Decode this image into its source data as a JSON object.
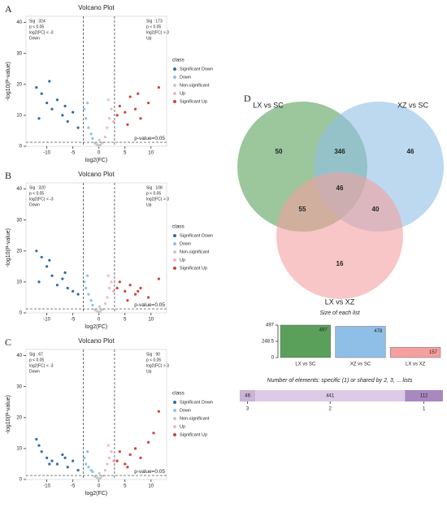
{
  "chart_data": [
    {
      "type": "scatter",
      "panel": "A",
      "title": "Volcano Plot",
      "x_label": "log2(FC)",
      "y_label": "-log10(P-value)",
      "xlim": [
        -14,
        13
      ],
      "xticks": [
        -10,
        -5,
        0,
        5,
        10
      ],
      "ylim": [
        0,
        42
      ],
      "yticks": [
        0,
        10,
        20,
        30,
        40
      ],
      "vlines": [
        -3,
        3
      ],
      "hline": 1.3,
      "hline_label": "p-value=0.05",
      "annotation_left": [
        "Sig : 324",
        "p < 0.05",
        "log2(FC) < -3",
        "Down"
      ],
      "annotation_right": [
        "Sig : 173",
        "p < 0.05",
        "log2(FC) > 3",
        "Up"
      ],
      "legend_title": "class",
      "series": [
        {
          "name": "Significant Down",
          "color": "#2e6da4",
          "x": [
            -12,
            -11,
            -10,
            -9,
            -8,
            -7,
            -6,
            -5,
            -4,
            -11.5,
            -9.5,
            -6.5
          ],
          "values": [
            19,
            17,
            14,
            12,
            15,
            10,
            8,
            11,
            6,
            9,
            21,
            13
          ]
        },
        {
          "name": "Down",
          "color": "#87c4e8",
          "x": [
            -2.8,
            -2.5,
            -2,
            -1.5,
            -1.2,
            -2.2
          ],
          "values": [
            12,
            9,
            6,
            4,
            2.5,
            14
          ]
        },
        {
          "name": "Non-significant",
          "color": "#c8c8c8",
          "x": [
            -0.8,
            -0.4,
            0,
            0.3,
            0.7,
            0.1
          ],
          "values": [
            1,
            0.6,
            0.3,
            0.5,
            1.1,
            2
          ]
        },
        {
          "name": "Up",
          "color": "#f4b6c2",
          "x": [
            1.2,
            1.6,
            2,
            2.4,
            2.8,
            1.8
          ],
          "values": [
            3,
            6,
            9,
            12,
            8,
            15
          ]
        },
        {
          "name": "Significant Up",
          "color": "#d0413e",
          "x": [
            3.5,
            4,
            5,
            6,
            7,
            8,
            9.5,
            11.5,
            5.5,
            7.5
          ],
          "values": [
            10,
            13,
            11,
            16,
            12,
            9,
            14,
            19,
            7,
            17
          ]
        }
      ]
    },
    {
      "type": "scatter",
      "panel": "B",
      "title": "Volcano Plot",
      "x_label": "log2(FC)",
      "y_label": "-log10(P-value)",
      "xlim": [
        -14,
        13
      ],
      "xticks": [
        -10,
        -5,
        0,
        5,
        10
      ],
      "ylim": [
        0,
        42
      ],
      "yticks": [
        0,
        10,
        20,
        30,
        40
      ],
      "vlines": [
        -3,
        3
      ],
      "hline": 1.3,
      "hline_label": "p-value=0.05",
      "annotation_left": [
        "Sig : 320",
        "p < 0.05",
        "log2(FC) < -3",
        "Down"
      ],
      "annotation_right": [
        "Sig : 108",
        "p < 0.05",
        "log2(FC) > 3",
        "Up"
      ],
      "legend_title": "class",
      "series": [
        {
          "name": "Significant Down",
          "color": "#2e6da4",
          "x": [
            -12,
            -11,
            -10,
            -9,
            -8,
            -7,
            -6,
            -5,
            -4,
            -11.5,
            -9.5,
            -6.5
          ],
          "values": [
            20,
            18,
            15,
            12,
            9,
            11,
            8,
            7,
            6,
            10,
            17,
            13
          ]
        },
        {
          "name": "Down",
          "color": "#87c4e8",
          "x": [
            -2.8,
            -2.5,
            -2,
            -1.5,
            -1.2,
            -2.2
          ],
          "values": [
            10,
            8,
            6,
            4,
            2.5,
            12
          ]
        },
        {
          "name": "Non-significant",
          "color": "#c8c8c8",
          "x": [
            -0.8,
            -0.4,
            0,
            0.3,
            0.7,
            0.1
          ],
          "values": [
            1,
            0.6,
            0.3,
            0.5,
            1.1,
            2
          ]
        },
        {
          "name": "Up",
          "color": "#f4b6c2",
          "x": [
            1.2,
            1.6,
            2,
            2.4,
            2.8,
            1.8
          ],
          "values": [
            3,
            5,
            8,
            10,
            7,
            12
          ]
        },
        {
          "name": "Significant Up",
          "color": "#d0413e",
          "x": [
            3.5,
            4,
            5,
            6,
            7,
            8,
            9.5,
            11.5,
            5.5,
            7.5
          ],
          "values": [
            8,
            10,
            7,
            9,
            6,
            8,
            5,
            11,
            4,
            7
          ]
        }
      ]
    },
    {
      "type": "scatter",
      "panel": "C",
      "title": "Volcano Plot",
      "x_label": "log2(FC)",
      "y_label": "-log10(P-value)",
      "xlim": [
        -14,
        13
      ],
      "xticks": [
        -10,
        -5,
        0,
        5,
        10
      ],
      "ylim": [
        0,
        42
      ],
      "yticks": [
        0,
        10,
        20,
        30,
        40
      ],
      "vlines": [
        -3,
        3
      ],
      "hline": 1.3,
      "hline_label": "p-value=0.05",
      "annotation_left": [
        "Sig : 67",
        "p < 0.05",
        "log2(FC) < -3",
        "Down"
      ],
      "annotation_right": [
        "Sig : 90",
        "p < 0.05",
        "log2(FC) > 3",
        "Up"
      ],
      "legend_title": "class",
      "series": [
        {
          "name": "Significant Down",
          "color": "#2e6da4",
          "x": [
            -12,
            -11,
            -10,
            -9,
            -8,
            -7,
            -6,
            -5,
            -4,
            -11.5,
            -9.5,
            -6.5
          ],
          "values": [
            13,
            9,
            7,
            6,
            5,
            8,
            4,
            6,
            3,
            11,
            5,
            7
          ]
        },
        {
          "name": "Down",
          "color": "#87c4e8",
          "x": [
            -2.8,
            -2.5,
            -2,
            -1.5,
            -1.2,
            -2.2
          ],
          "values": [
            7,
            5,
            4,
            3,
            2.5,
            9
          ]
        },
        {
          "name": "Non-significant",
          "color": "#c8c8c8",
          "x": [
            -0.8,
            -0.4,
            0,
            0.3,
            0.7,
            0.1
          ],
          "values": [
            1,
            0.6,
            0.3,
            0.5,
            1.1,
            2
          ]
        },
        {
          "name": "Up",
          "color": "#f4b6c2",
          "x": [
            1.2,
            1.6,
            2,
            2.4,
            2.8,
            1.8
          ],
          "values": [
            3,
            5,
            7,
            9,
            6,
            11
          ]
        },
        {
          "name": "Significant Up",
          "color": "#d0413e",
          "x": [
            3.5,
            4,
            5,
            6,
            7,
            8,
            9.5,
            11.5,
            5.5,
            10.5
          ],
          "values": [
            6,
            9,
            5,
            8,
            10,
            7,
            12,
            22,
            4,
            15
          ]
        }
      ]
    },
    {
      "type": "venn",
      "panel": "D",
      "sets": [
        {
          "name": "LX vs SC",
          "color": "#5aa05a"
        },
        {
          "name": "XZ vs SC",
          "color": "#8fbfe6"
        },
        {
          "name": "LX vs XZ",
          "color": "#f4a0a0"
        }
      ],
      "regions": [
        50,
        46,
        16,
        346,
        55,
        40,
        46
      ]
    },
    {
      "type": "bar",
      "title": "Size of each list",
      "categories": [
        "LX vs SC",
        "XZ vs SC",
        "LX vs XZ"
      ],
      "values": [
        497,
        478,
        157
      ],
      "colors": [
        "#5aa05a",
        "#8fbfe6",
        "#f4a0a0"
      ],
      "ylim": [
        0,
        497
      ],
      "yticks": [
        0,
        248.5,
        497
      ]
    },
    {
      "type": "stacked_bar",
      "title": "Number of elements: specific (1) or shared by 2, 3, ... lists",
      "categories": [
        "3",
        "2",
        "1"
      ],
      "values": [
        46,
        441,
        112
      ],
      "colors": [
        "#c9b3d6",
        "#dccbe6",
        "#a988bf"
      ]
    }
  ]
}
